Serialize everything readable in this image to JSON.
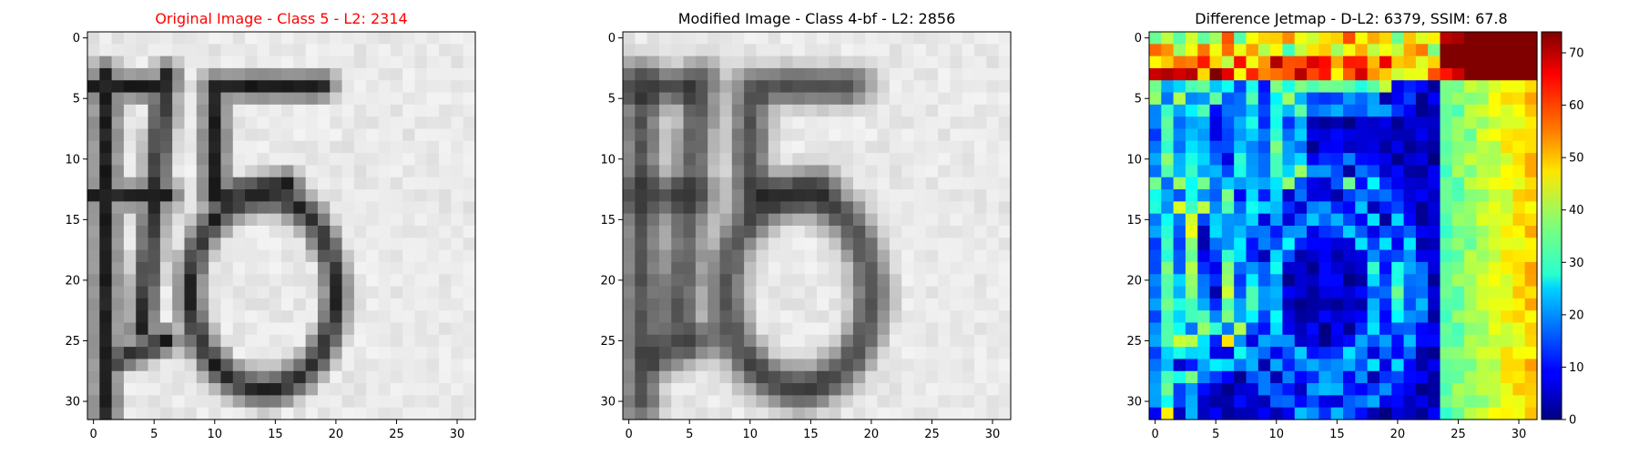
{
  "figure": {
    "panels": [
      {
        "title": "Original Image - Class 5 - L2: 2314",
        "title_color": "#ff0000"
      },
      {
        "title": "Modified Image - Class 4-bf - L2: 2856",
        "title_color": "#000000"
      },
      {
        "title": "Difference Jetmap - D-L2: 6379, SSIM: 67.8",
        "title_color": "#000000"
      }
    ]
  },
  "chart_data": [
    {
      "type": "heatmap",
      "title": "Original Image - Class 5 - L2: 2314",
      "colormap": "gray",
      "grid_size": [
        32,
        32
      ],
      "xlim": [
        -0.5,
        31.5
      ],
      "ylim": [
        31.5,
        -0.5
      ],
      "xticks": [
        0,
        5,
        10,
        15,
        20,
        25,
        30
      ],
      "yticks": [
        0,
        5,
        10,
        15,
        20,
        25,
        30
      ],
      "content": "handwritten-style digits '4' and '5' in dark strokes on a light background",
      "grid": false
    },
    {
      "type": "heatmap",
      "title": "Modified Image - Class 4-bf - L2: 2856",
      "colormap": "gray",
      "grid_size": [
        32,
        32
      ],
      "xlim": [
        -0.5,
        31.5
      ],
      "ylim": [
        31.5,
        -0.5
      ],
      "xticks": [
        0,
        5,
        10,
        15,
        20,
        25,
        30
      ],
      "yticks": [
        0,
        5,
        10,
        15,
        20,
        25,
        30
      ],
      "content": "blurred version of the digit image",
      "grid": false
    },
    {
      "type": "heatmap",
      "title": "Difference Jetmap - D-L2: 6379, SSIM: 67.8",
      "colormap": "jet",
      "grid_size": [
        32,
        32
      ],
      "xlim": [
        -0.5,
        31.5
      ],
      "ylim": [
        31.5,
        -0.5
      ],
      "xticks": [
        0,
        5,
        10,
        15,
        20,
        25,
        30
      ],
      "yticks": [
        0,
        5,
        10,
        15,
        20,
        25,
        30
      ],
      "colorbar": {
        "min": 0,
        "max": 74,
        "ticks": [
          0,
          10,
          20,
          30,
          40,
          50,
          60,
          70
        ]
      },
      "grid": false
    }
  ]
}
